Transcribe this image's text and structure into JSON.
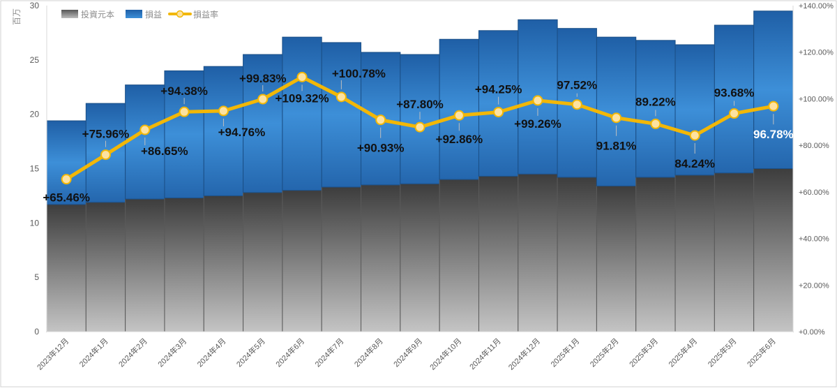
{
  "chart_data": {
    "type": "bar",
    "categories": [
      "2023年12月",
      "2024年1月",
      "2024年2月",
      "2024年3月",
      "2024年4月",
      "2024年5月",
      "2024年6月",
      "2024年7月",
      "2024年8月",
      "2024年9月",
      "2024年10月",
      "2024年11月",
      "2024年12月",
      "2025年1月",
      "2025年2月",
      "2025年3月",
      "2025年4月",
      "2025年5月",
      "2025年6月"
    ],
    "series": [
      {
        "name": "投資元本",
        "kind": "stacked-bar",
        "axis": "left",
        "color": "#8c8c8c",
        "values": [
          11.7,
          11.9,
          12.2,
          12.3,
          12.5,
          12.8,
          13.0,
          13.3,
          13.5,
          13.6,
          14.0,
          14.3,
          14.5,
          14.2,
          13.4,
          14.2,
          14.4,
          14.6,
          15.0
        ]
      },
      {
        "name": "損益",
        "kind": "stacked-bar",
        "axis": "left",
        "color": "#2e75c0",
        "values": [
          7.7,
          9.1,
          10.5,
          11.7,
          11.9,
          12.7,
          14.1,
          13.3,
          12.2,
          11.9,
          12.9,
          13.4,
          14.2,
          13.7,
          13.7,
          12.6,
          12.0,
          13.6,
          14.5
        ]
      },
      {
        "name": "損益率",
        "kind": "line",
        "axis": "right",
        "color": "#f5b800",
        "values": [
          65.46,
          75.96,
          86.65,
          94.38,
          94.76,
          99.83,
          109.32,
          100.78,
          90.93,
          87.8,
          92.86,
          94.25,
          99.26,
          97.52,
          91.81,
          89.22,
          84.24,
          93.68,
          96.78
        ]
      }
    ],
    "data_labels": [
      "+65.46%",
      "+75.96%",
      "+86.65%",
      "+94.38%",
      "+94.76%",
      "+99.83%",
      "+109.32%",
      "+100.78%",
      "+90.93%",
      "+87.80%",
      "+92.86%",
      "+94.25%",
      "+99.26%",
      "97.52%",
      "91.81%",
      "89.22%",
      "84.24%",
      "93.68%",
      "96.78%"
    ],
    "y_left": {
      "unit_label": "百万",
      "ylim": [
        0,
        30
      ],
      "ticks": [
        "0",
        "5",
        "10",
        "15",
        "20",
        "25",
        "30"
      ]
    },
    "y_right": {
      "ylim": [
        0,
        140
      ],
      "ticks": [
        "+0.00%",
        "+20.00%",
        "+40.00%",
        "+60.00%",
        "+80.00%",
        "+100.00%",
        "+120.00%",
        "+140.00%"
      ]
    },
    "legend": {
      "placement": "top-left",
      "items": [
        "投資元本",
        "損益",
        "損益率"
      ]
    },
    "grid": false
  }
}
